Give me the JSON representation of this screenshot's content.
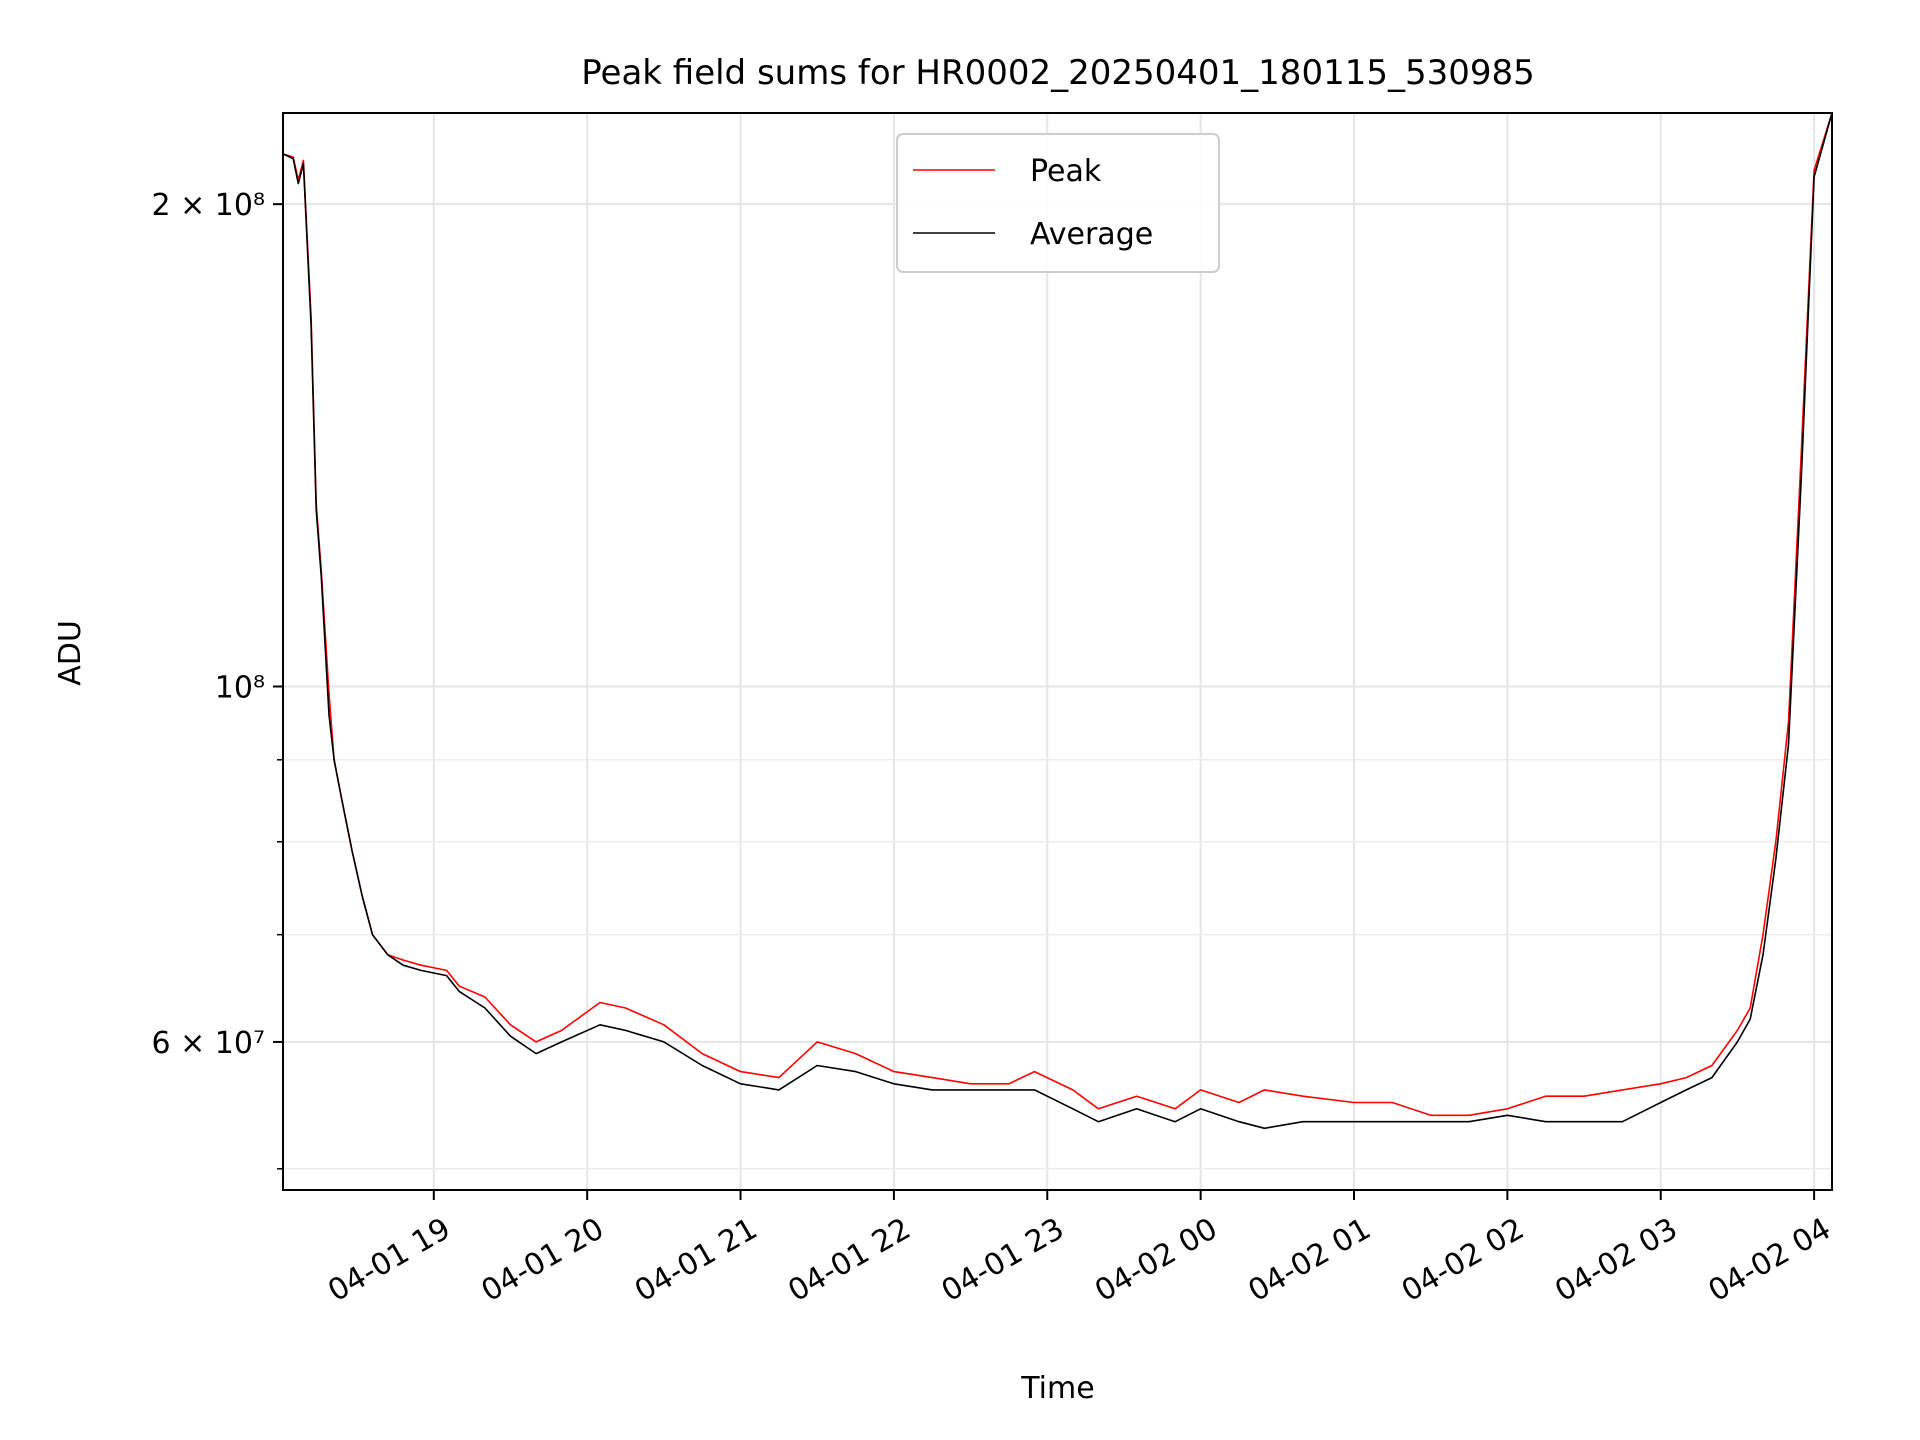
{
  "chart_data": {
    "type": "line",
    "title": "Peak field sums for HR0002_20250401_180115_530985",
    "xlabel": "Time",
    "ylabel": "ADU",
    "yscale": "log",
    "ylim": [
      48500000,
      228000000
    ],
    "xlim": [
      "2025-04-01T18:01",
      "2025-04-02T04:07"
    ],
    "grid": true,
    "legend_position": "top-center",
    "x_ticks": [
      {
        "value": "2025-04-01T19:00",
        "label": "04-01 19"
      },
      {
        "value": "2025-04-01T20:00",
        "label": "04-01 20"
      },
      {
        "value": "2025-04-01T21:00",
        "label": "04-01 21"
      },
      {
        "value": "2025-04-01T22:00",
        "label": "04-01 22"
      },
      {
        "value": "2025-04-01T23:00",
        "label": "04-01 23"
      },
      {
        "value": "2025-04-02T00:00",
        "label": "04-02 00"
      },
      {
        "value": "2025-04-02T01:00",
        "label": "04-02 01"
      },
      {
        "value": "2025-04-02T02:00",
        "label": "04-02 02"
      },
      {
        "value": "2025-04-02T03:00",
        "label": "04-02 03"
      },
      {
        "value": "2025-04-02T04:00",
        "label": "04-02 04"
      }
    ],
    "y_major_ticks": [
      {
        "value": 60000000,
        "label": "6 × 10⁷"
      },
      {
        "value": 100000000,
        "label": "10⁸"
      },
      {
        "value": 200000000,
        "label": "2 × 10⁸"
      }
    ],
    "y_minor_ticks": [
      50000000,
      70000000,
      80000000,
      90000000
    ],
    "series": [
      {
        "name": "Peak",
        "color": "#ff0000",
        "x": [
          "2025-04-01T18:01",
          "2025-04-01T18:05",
          "2025-04-01T18:07",
          "2025-04-01T18:09",
          "2025-04-01T18:12",
          "2025-04-01T18:14",
          "2025-04-01T18:16",
          "2025-04-01T18:19",
          "2025-04-01T18:21",
          "2025-04-01T18:24",
          "2025-04-01T18:28",
          "2025-04-01T18:32",
          "2025-04-01T18:36",
          "2025-04-01T18:42",
          "2025-04-01T18:48",
          "2025-04-01T18:55",
          "2025-04-01T19:05",
          "2025-04-01T19:10",
          "2025-04-01T19:20",
          "2025-04-01T19:30",
          "2025-04-01T19:40",
          "2025-04-01T19:50",
          "2025-04-01T20:05",
          "2025-04-01T20:15",
          "2025-04-01T20:30",
          "2025-04-01T20:45",
          "2025-04-01T21:00",
          "2025-04-01T21:15",
          "2025-04-01T21:30",
          "2025-04-01T21:45",
          "2025-04-01T22:00",
          "2025-04-01T22:15",
          "2025-04-01T22:30",
          "2025-04-01T22:45",
          "2025-04-01T22:55",
          "2025-04-01T23:10",
          "2025-04-01T23:20",
          "2025-04-01T23:35",
          "2025-04-01T23:50",
          "2025-04-02T00:00",
          "2025-04-02T00:15",
          "2025-04-02T00:25",
          "2025-04-02T00:40",
          "2025-04-02T01:00",
          "2025-04-02T01:15",
          "2025-04-02T01:30",
          "2025-04-02T01:45",
          "2025-04-02T02:00",
          "2025-04-02T02:15",
          "2025-04-02T02:30",
          "2025-04-02T02:45",
          "2025-04-02T03:00",
          "2025-04-02T03:10",
          "2025-04-02T03:20",
          "2025-04-02T03:30",
          "2025-04-02T03:35",
          "2025-04-02T03:40",
          "2025-04-02T03:45",
          "2025-04-02T03:50",
          "2025-04-02T03:55",
          "2025-04-02T04:00",
          "2025-04-02T04:07"
        ],
        "values": [
          215000000,
          214000000,
          207000000,
          213000000,
          170000000,
          130000000,
          118000000,
          99000000,
          90000000,
          85000000,
          79000000,
          74000000,
          70000000,
          68000000,
          67500000,
          67000000,
          66500000,
          65000000,
          64000000,
          61500000,
          60000000,
          61000000,
          63500000,
          63000000,
          61500000,
          59000000,
          57500000,
          57000000,
          60000000,
          59000000,
          57500000,
          57000000,
          56500000,
          56500000,
          57500000,
          56000000,
          54500000,
          55500000,
          54500000,
          56000000,
          55000000,
          56000000,
          55500000,
          55000000,
          55000000,
          54000000,
          54000000,
          54500000,
          55500000,
          55500000,
          56000000,
          56500000,
          57000000,
          58000000,
          61000000,
          63000000,
          70000000,
          80000000,
          95000000,
          140000000,
          210000000,
          228000000
        ]
      },
      {
        "name": "Average",
        "color": "#000000",
        "x": [
          "2025-04-01T18:01",
          "2025-04-01T18:05",
          "2025-04-01T18:07",
          "2025-04-01T18:09",
          "2025-04-01T18:12",
          "2025-04-01T18:14",
          "2025-04-01T18:16",
          "2025-04-01T18:19",
          "2025-04-01T18:21",
          "2025-04-01T18:24",
          "2025-04-01T18:28",
          "2025-04-01T18:32",
          "2025-04-01T18:36",
          "2025-04-01T18:42",
          "2025-04-01T18:48",
          "2025-04-01T18:55",
          "2025-04-01T19:05",
          "2025-04-01T19:10",
          "2025-04-01T19:20",
          "2025-04-01T19:30",
          "2025-04-01T19:40",
          "2025-04-01T19:50",
          "2025-04-01T20:05",
          "2025-04-01T20:15",
          "2025-04-01T20:30",
          "2025-04-01T20:45",
          "2025-04-01T21:00",
          "2025-04-01T21:15",
          "2025-04-01T21:30",
          "2025-04-01T21:45",
          "2025-04-01T22:00",
          "2025-04-01T22:15",
          "2025-04-01T22:30",
          "2025-04-01T22:45",
          "2025-04-01T22:55",
          "2025-04-01T23:10",
          "2025-04-01T23:20",
          "2025-04-01T23:35",
          "2025-04-01T23:50",
          "2025-04-02T00:00",
          "2025-04-02T00:15",
          "2025-04-02T00:25",
          "2025-04-02T00:40",
          "2025-04-02T01:00",
          "2025-04-02T01:15",
          "2025-04-02T01:30",
          "2025-04-02T01:45",
          "2025-04-02T02:00",
          "2025-04-02T02:15",
          "2025-04-02T02:30",
          "2025-04-02T02:45",
          "2025-04-02T03:00",
          "2025-04-02T03:10",
          "2025-04-02T03:20",
          "2025-04-02T03:30",
          "2025-04-02T03:35",
          "2025-04-02T03:40",
          "2025-04-02T03:45",
          "2025-04-02T03:50",
          "2025-04-02T03:55",
          "2025-04-02T04:00",
          "2025-04-02T04:07"
        ],
        "values": [
          215000000,
          213500000,
          206000000,
          212000000,
          168000000,
          129000000,
          117000000,
          96000000,
          90000000,
          85000000,
          79000000,
          74000000,
          70000000,
          68000000,
          67000000,
          66500000,
          66000000,
          64500000,
          63000000,
          60500000,
          59000000,
          60000000,
          61500000,
          61000000,
          60000000,
          58000000,
          56500000,
          56000000,
          58000000,
          57500000,
          56500000,
          56000000,
          56000000,
          56000000,
          56000000,
          54500000,
          53500000,
          54500000,
          53500000,
          54500000,
          53500000,
          53000000,
          53500000,
          53500000,
          53500000,
          53500000,
          53500000,
          54000000,
          53500000,
          53500000,
          53500000,
          55000000,
          56000000,
          57000000,
          60000000,
          62000000,
          68000000,
          78000000,
          92000000,
          135000000,
          208000000,
          228000000
        ]
      }
    ]
  }
}
